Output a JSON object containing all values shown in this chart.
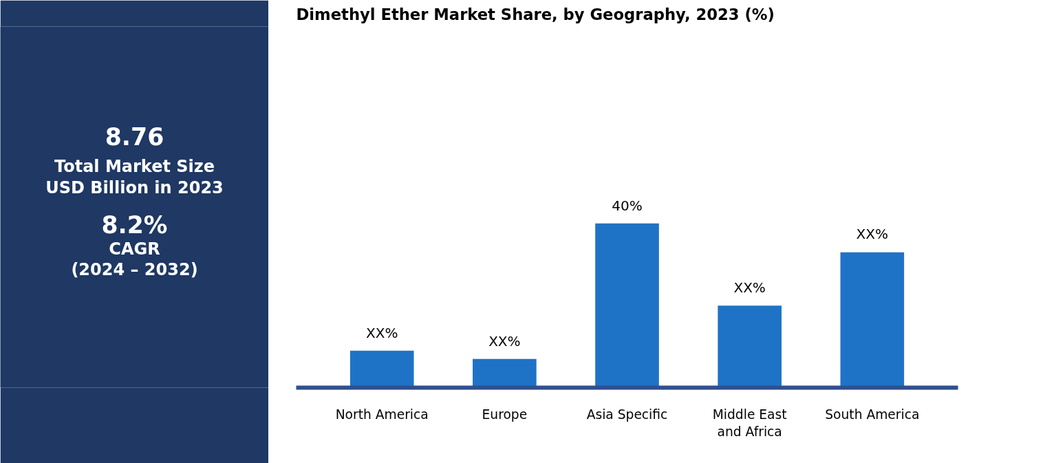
{
  "chart_data": [
    {
      "type": "other",
      "annotations": [
        "8.76",
        "Total Market Size",
        "USD Billion in 2023",
        "8.2%",
        "CAGR",
        "(2024 – 2032)"
      ]
    },
    {
      "type": "bar",
      "title": "Dimethyl Ether  Market Share, by Geography, 2023 (%)",
      "tick_labels": "x",
      "categories": [
        "North America",
        "Europe",
        "Asia Specific",
        "Middle East and Africa",
        "South America"
      ],
      "values": [
        9,
        7,
        40,
        20,
        33
      ],
      "value_labels": [
        "XX%",
        "XX%",
        "40%",
        "XX%",
        "XX%"
      ],
      "color": "#1f73c6",
      "grid": false
    }
  ]
}
